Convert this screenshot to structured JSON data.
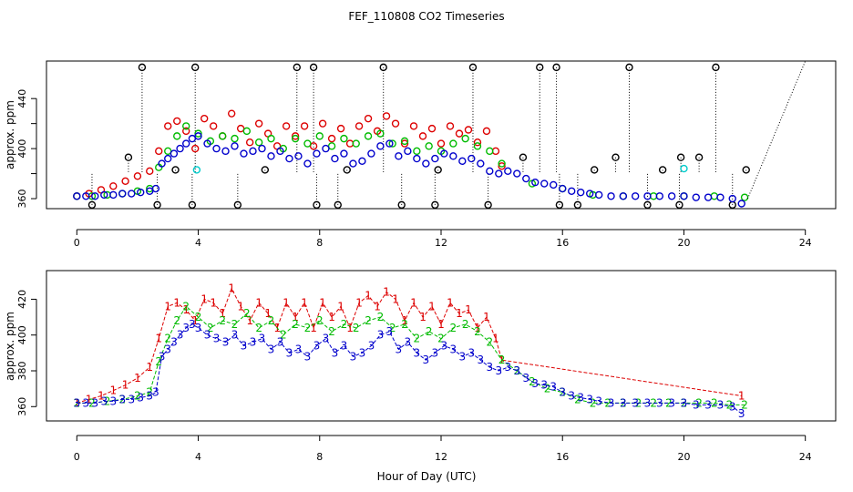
{
  "title": "FEF_110808  CO2 Timeseries",
  "xlabel": "Hour of Day (UTC)",
  "colors": {
    "black": "#000000",
    "red": "#dd0000",
    "green": "#00bb00",
    "blue": "#0000cc",
    "cyan": "#00cccc"
  },
  "chart_data": [
    {
      "type": "scatter",
      "panel": "top",
      "ylabel": "approx. ppm",
      "xlim": [
        -1.0,
        25.0
      ],
      "ylim": [
        352,
        470
      ],
      "xticks": [
        0,
        4,
        8,
        12,
        16,
        20,
        24
      ],
      "yticks": [
        360,
        380,
        400,
        420,
        440
      ],
      "ytick_labels": [
        "360",
        "",
        "400",
        "",
        "440"
      ],
      "series": [
        {
          "color": "#000000",
          "marker": "o",
          "x": [
            0.5,
            1.7,
            2.15,
            2.65,
            3.25,
            3.8,
            3.9,
            5.3,
            6.2,
            7.25,
            7.8,
            7.9,
            8.6,
            8.9,
            10.1,
            10.7,
            11.8,
            11.9,
            13.05,
            13.55,
            14.7,
            15.25,
            15.8,
            15.9,
            16.5,
            17.05,
            17.75,
            18.2,
            18.8,
            19.3,
            19.85,
            19.9,
            20.5,
            21.05,
            21.6,
            22.05
          ],
          "y": [
            355,
            393,
            465,
            355,
            383,
            355,
            465,
            355,
            383,
            465,
            465,
            355,
            355,
            383,
            465,
            355,
            355,
            383,
            465,
            355,
            393,
            465,
            465,
            355,
            355,
            383,
            393,
            465,
            355,
            383,
            355,
            393,
            393,
            465,
            355,
            383
          ]
        },
        {
          "color": "#dd0000",
          "marker": "o",
          "x": [
            0.0,
            0.4,
            0.8,
            1.2,
            1.6,
            2.0,
            2.4,
            2.7,
            3.0,
            3.3,
            3.6,
            3.9,
            4.2,
            4.5,
            4.8,
            5.1,
            5.4,
            5.7,
            6.0,
            6.3,
            6.6,
            6.9,
            7.2,
            7.5,
            7.8,
            8.1,
            8.4,
            8.7,
            9.0,
            9.3,
            9.6,
            9.9,
            10.2,
            10.5,
            10.8,
            11.1,
            11.4,
            11.7,
            12.0,
            12.3,
            12.6,
            12.9,
            13.2,
            13.5,
            13.8,
            14.0
          ],
          "y": [
            362,
            364,
            367,
            370,
            374,
            378,
            382,
            398,
            418,
            422,
            414,
            400,
            424,
            418,
            410,
            428,
            416,
            405,
            420,
            412,
            402,
            418,
            410,
            418,
            402,
            420,
            408,
            416,
            404,
            418,
            424,
            414,
            426,
            420,
            404,
            418,
            410,
            416,
            404,
            418,
            412,
            415,
            405,
            414,
            398,
            386
          ]
        },
        {
          "color": "#00bb00",
          "marker": "o",
          "x": [
            0.0,
            0.5,
            1.0,
            1.5,
            2.0,
            2.4,
            2.7,
            3.0,
            3.3,
            3.6,
            4.0,
            4.4,
            4.8,
            5.2,
            5.6,
            6.0,
            6.4,
            6.8,
            7.2,
            7.6,
            8.0,
            8.4,
            8.8,
            9.2,
            9.6,
            10.0,
            10.4,
            10.8,
            11.2,
            11.6,
            12.0,
            12.4,
            12.8,
            13.2,
            13.6,
            14.0,
            15.0,
            16.0,
            17.0,
            18.0,
            19.0,
            20.0,
            21.0,
            22.0
          ],
          "y": [
            362,
            362,
            363,
            364,
            366,
            368,
            385,
            398,
            410,
            418,
            412,
            406,
            410,
            408,
            414,
            405,
            408,
            400,
            408,
            404,
            410,
            402,
            408,
            404,
            410,
            412,
            404,
            406,
            398,
            402,
            398,
            404,
            408,
            402,
            398,
            388,
            372,
            368,
            363,
            362,
            362,
            362,
            362,
            361
          ]
        },
        {
          "color": "#0000cc",
          "marker": "o",
          "x": [
            0.0,
            0.3,
            0.6,
            0.9,
            1.2,
            1.5,
            1.8,
            2.1,
            2.4,
            2.6,
            2.8,
            3.0,
            3.2,
            3.4,
            3.6,
            3.8,
            4.0,
            4.3,
            4.6,
            4.9,
            5.2,
            5.5,
            5.8,
            6.1,
            6.4,
            6.7,
            7.0,
            7.3,
            7.6,
            7.9,
            8.2,
            8.5,
            8.8,
            9.1,
            9.4,
            9.7,
            10.0,
            10.3,
            10.6,
            10.9,
            11.2,
            11.5,
            11.8,
            12.1,
            12.4,
            12.7,
            13.0,
            13.3,
            13.6,
            13.9,
            14.2,
            14.5,
            14.8,
            15.1,
            15.4,
            15.7,
            16.0,
            16.3,
            16.6,
            16.9,
            17.2,
            17.6,
            18.0,
            18.4,
            18.8,
            19.2,
            19.6,
            20.0,
            20.4,
            20.8,
            21.2,
            21.6,
            21.9
          ],
          "y": [
            362,
            362,
            362,
            363,
            363,
            364,
            364,
            365,
            366,
            368,
            388,
            392,
            396,
            400,
            404,
            408,
            410,
            404,
            400,
            398,
            402,
            396,
            398,
            400,
            394,
            398,
            392,
            394,
            388,
            396,
            400,
            392,
            396,
            388,
            390,
            396,
            402,
            404,
            394,
            398,
            392,
            388,
            392,
            396,
            394,
            390,
            392,
            388,
            382,
            380,
            382,
            380,
            376,
            373,
            372,
            371,
            368,
            366,
            365,
            364,
            363,
            362,
            362,
            362,
            362,
            362,
            362,
            362,
            361,
            361,
            361,
            360,
            356
          ]
        },
        {
          "color": "#00cccc",
          "marker": "o",
          "x": [
            3.95,
            20.0
          ],
          "y": [
            383,
            384
          ]
        }
      ]
    },
    {
      "type": "scatter",
      "panel": "bottom",
      "ylabel": "approx. ppm",
      "xlim": [
        -1.0,
        25.0
      ],
      "ylim": [
        352,
        436
      ],
      "xticks": [
        0,
        4,
        8,
        12,
        16,
        20,
        24
      ],
      "yticks": [
        360,
        380,
        400,
        420
      ],
      "series": [
        {
          "label": "1",
          "color": "#dd0000",
          "x": [
            0.0,
            0.4,
            0.8,
            1.2,
            1.6,
            2.0,
            2.4,
            2.7,
            3.0,
            3.3,
            3.6,
            3.9,
            4.2,
            4.5,
            4.8,
            5.1,
            5.4,
            5.7,
            6.0,
            6.3,
            6.6,
            6.9,
            7.2,
            7.5,
            7.8,
            8.1,
            8.4,
            8.7,
            9.0,
            9.3,
            9.6,
            9.9,
            10.2,
            10.5,
            10.8,
            11.1,
            11.4,
            11.7,
            12.0,
            12.3,
            12.6,
            12.9,
            13.2,
            13.5,
            13.8,
            14.0,
            21.9
          ],
          "y": [
            362,
            364,
            366,
            369,
            372,
            376,
            382,
            398,
            416,
            418,
            414,
            408,
            420,
            418,
            412,
            426,
            416,
            408,
            418,
            412,
            404,
            418,
            410,
            418,
            404,
            418,
            410,
            416,
            404,
            418,
            422,
            416,
            424,
            420,
            408,
            418,
            410,
            416,
            406,
            418,
            412,
            414,
            404,
            410,
            398,
            386,
            366
          ]
        },
        {
          "label": "2",
          "color": "#00bb00",
          "x": [
            0.0,
            0.5,
            1.0,
            1.5,
            2.0,
            2.4,
            2.7,
            3.0,
            3.3,
            3.6,
            4.0,
            4.4,
            4.8,
            5.2,
            5.6,
            6.0,
            6.4,
            6.8,
            7.2,
            7.6,
            8.0,
            8.4,
            8.8,
            9.2,
            9.6,
            10.0,
            10.4,
            10.8,
            11.2,
            11.6,
            12.0,
            12.4,
            12.8,
            13.2,
            13.6,
            14.0,
            14.5,
            15.0,
            15.5,
            16.0,
            16.5,
            17.0,
            17.5,
            18.0,
            18.5,
            19.0,
            19.5,
            20.0,
            20.5,
            21.0,
            21.5,
            22.0
          ],
          "y": [
            362,
            362,
            363,
            364,
            366,
            368,
            385,
            398,
            408,
            416,
            410,
            404,
            408,
            406,
            412,
            404,
            408,
            400,
            406,
            404,
            408,
            402,
            406,
            404,
            408,
            410,
            404,
            406,
            398,
            402,
            398,
            404,
            406,
            402,
            396,
            386,
            380,
            374,
            370,
            368,
            364,
            362,
            362,
            362,
            362,
            362,
            362,
            362,
            362,
            362,
            361,
            361
          ]
        },
        {
          "label": "3",
          "color": "#0000cc",
          "x": [
            0.0,
            0.3,
            0.6,
            0.9,
            1.2,
            1.5,
            1.8,
            2.1,
            2.4,
            2.6,
            2.8,
            3.0,
            3.2,
            3.4,
            3.6,
            3.8,
            4.0,
            4.3,
            4.6,
            4.9,
            5.2,
            5.5,
            5.8,
            6.1,
            6.4,
            6.7,
            7.0,
            7.3,
            7.6,
            7.9,
            8.2,
            8.5,
            8.8,
            9.1,
            9.4,
            9.7,
            10.0,
            10.3,
            10.6,
            10.9,
            11.2,
            11.5,
            11.8,
            12.1,
            12.4,
            12.7,
            13.0,
            13.3,
            13.6,
            13.9,
            14.2,
            14.5,
            14.8,
            15.1,
            15.4,
            15.7,
            16.0,
            16.3,
            16.6,
            16.9,
            17.2,
            17.6,
            18.0,
            18.4,
            18.8,
            19.2,
            19.6,
            20.0,
            20.4,
            20.8,
            21.2,
            21.6,
            21.9
          ],
          "y": [
            362,
            362,
            362,
            363,
            363,
            364,
            364,
            365,
            366,
            368,
            388,
            392,
            396,
            400,
            404,
            406,
            404,
            400,
            398,
            396,
            400,
            394,
            396,
            398,
            392,
            396,
            390,
            392,
            388,
            394,
            398,
            390,
            394,
            388,
            390,
            394,
            400,
            402,
            392,
            396,
            390,
            386,
            390,
            394,
            392,
            388,
            390,
            386,
            382,
            380,
            382,
            380,
            376,
            373,
            372,
            371,
            368,
            366,
            365,
            364,
            363,
            362,
            362,
            362,
            362,
            362,
            362,
            362,
            361,
            361,
            361,
            360,
            356
          ]
        }
      ]
    }
  ]
}
